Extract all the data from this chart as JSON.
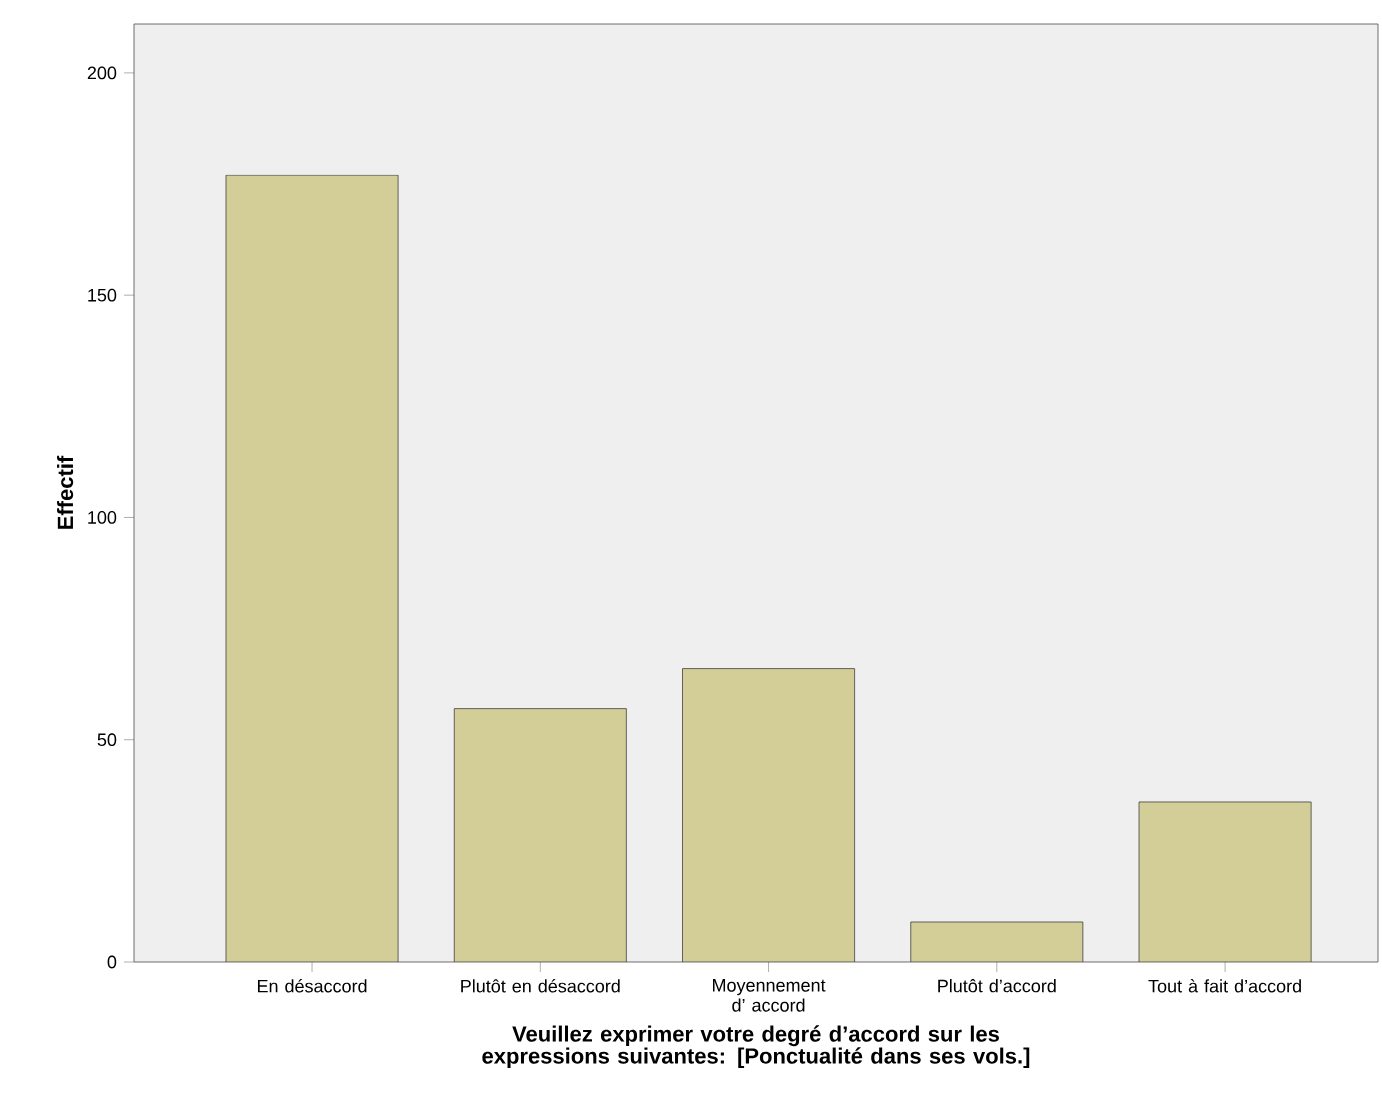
{
  "chart_data": {
    "type": "bar",
    "categories": [
      "En désaccord",
      "Plutôt en désaccord",
      "Moyennement d’ accord",
      "Plutôt d’accord",
      "Tout à fait d’accord"
    ],
    "values": [
      177,
      57,
      66,
      9,
      36
    ],
    "color": "#d3ce97",
    "xlabel": "Veuillez exprimer votre degré d’accord sur les expressions suivantes: [Ponctualité dans ses vols.]",
    "ylabel": "Effectif",
    "ylim": [
      0,
      211
    ],
    "yticks": [
      0,
      50,
      100,
      150,
      200
    ]
  }
}
